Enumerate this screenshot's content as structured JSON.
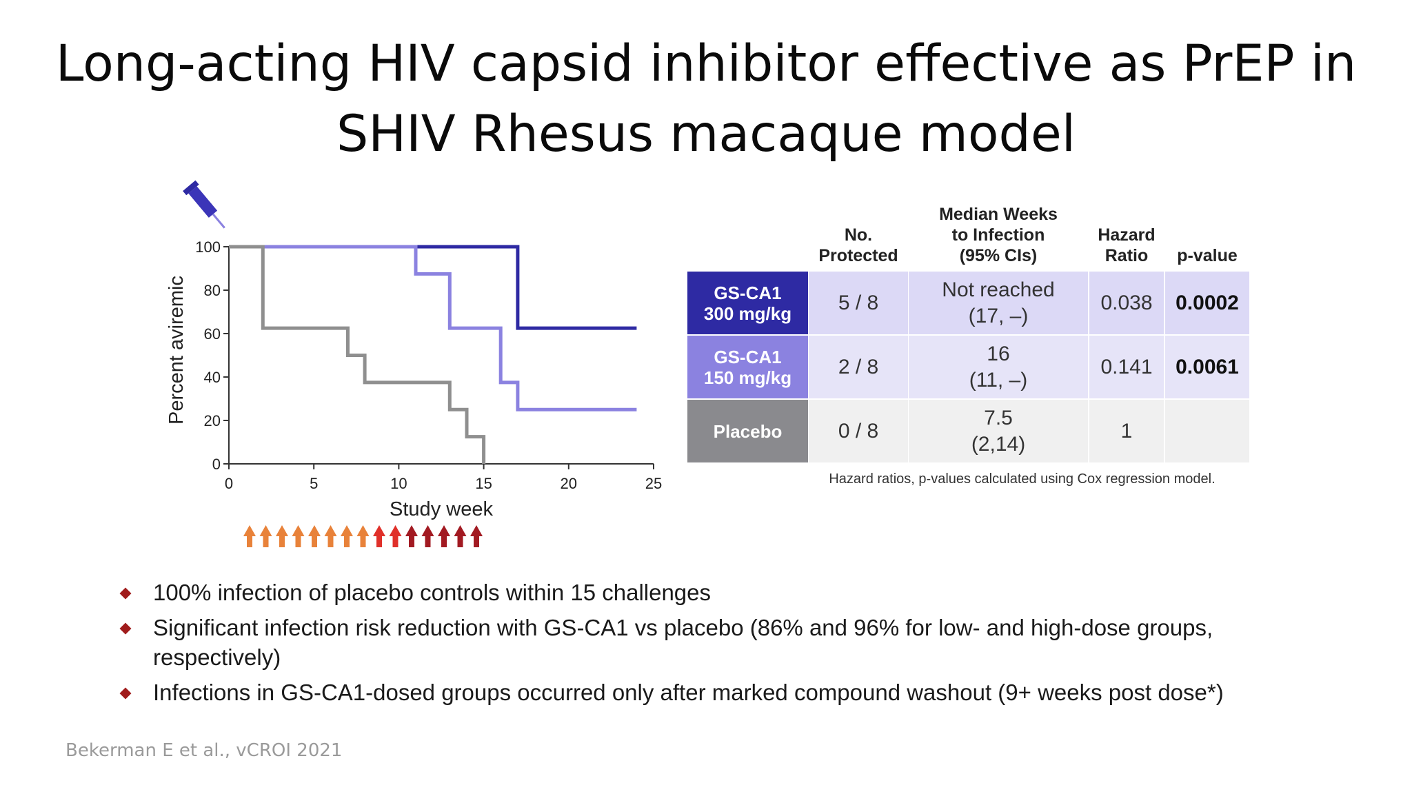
{
  "title": {
    "line1": "Long-acting HIV capsid inhibitor effective as PrEP in",
    "line2": "SHIV Rhesus macaque model"
  },
  "colors": {
    "dark_blue": "#2e2aa3",
    "light_purple": "#8b82e0",
    "gray": "#8f8f8f",
    "row1_cells": "#dcd9f6",
    "row2_cells": "#e6e4f8",
    "row3_cells": "#f0f0f0",
    "row3_head": "#8a8a8e",
    "arrow_orange": "#e8823a",
    "arrow_red": "#e0302a",
    "arrow_darkred": "#a21a22",
    "bullet": "#a01c1c"
  },
  "chart_data": {
    "type": "line",
    "ylabel": "Percent aviremic",
    "xlabel": "Study week",
    "xlim": [
      0,
      25
    ],
    "ylim": [
      0,
      100
    ],
    "x_ticks": [
      "0",
      "5",
      "10",
      "15",
      "20",
      "25"
    ],
    "y_ticks": [
      "0",
      "20",
      "40",
      "60",
      "80",
      "100"
    ],
    "series": [
      {
        "color": "#2e2aa3",
        "steps": [
          [
            0,
            100
          ],
          [
            17,
            100
          ],
          [
            17,
            62.5
          ],
          [
            24,
            62.5
          ]
        ]
      },
      {
        "color": "#8b82e0",
        "steps": [
          [
            0,
            100
          ],
          [
            11,
            100
          ],
          [
            11,
            87.5
          ],
          [
            13,
            87.5
          ],
          [
            13,
            62.5
          ],
          [
            16,
            62.5
          ],
          [
            16,
            37.5
          ],
          [
            17,
            37.5
          ],
          [
            17,
            25
          ],
          [
            24,
            25
          ]
        ]
      },
      {
        "color": "#8f8f8f",
        "steps": [
          [
            0,
            100
          ],
          [
            2,
            100
          ],
          [
            2,
            62.5
          ],
          [
            7,
            62.5
          ],
          [
            7,
            50
          ],
          [
            8,
            50
          ],
          [
            8,
            37.5
          ],
          [
            13,
            37.5
          ],
          [
            13,
            25
          ],
          [
            14,
            25
          ],
          [
            14,
            12.5
          ],
          [
            15,
            12.5
          ],
          [
            15,
            0
          ]
        ]
      }
    ],
    "challenge_arrows": [
      "orange",
      "orange",
      "orange",
      "orange",
      "orange",
      "orange",
      "orange",
      "orange",
      "red",
      "red",
      "darkred",
      "darkred",
      "darkred",
      "darkred",
      "darkred"
    ]
  },
  "table": {
    "headers": {
      "protected": "No.\nProtected",
      "median": "Median Weeks\nto Infection\n(95% CIs)",
      "hazard": "Hazard\nRatio",
      "pvalue": "p-value"
    },
    "rows": [
      {
        "group": "GS-CA1\n300 mg/kg",
        "protected": "5 / 8",
        "median": "Not reached\n(17, –)",
        "hazard": "0.038",
        "pvalue": "0.0002"
      },
      {
        "group": "GS-CA1\n150 mg/kg",
        "protected": "2 / 8",
        "median": "16\n(11, –)",
        "hazard": "0.141",
        "pvalue": "0.0061"
      },
      {
        "group": "Placebo",
        "protected": "0 / 8",
        "median": "7.5\n(2,14)",
        "hazard": "1",
        "pvalue": ""
      }
    ],
    "footnote": "Hazard ratios, p-values calculated using Cox regression model."
  },
  "bullets": [
    "100% infection of placebo controls within 15 challenges",
    "Significant infection risk reduction with GS-CA1 vs placebo (86% and 96% for low- and high-dose groups, respectively)",
    "Infections in GS-CA1-dosed groups occurred only after marked compound washout (9+ weeks post dose*)"
  ],
  "citation": "Bekerman E et al., vCROI 2021"
}
